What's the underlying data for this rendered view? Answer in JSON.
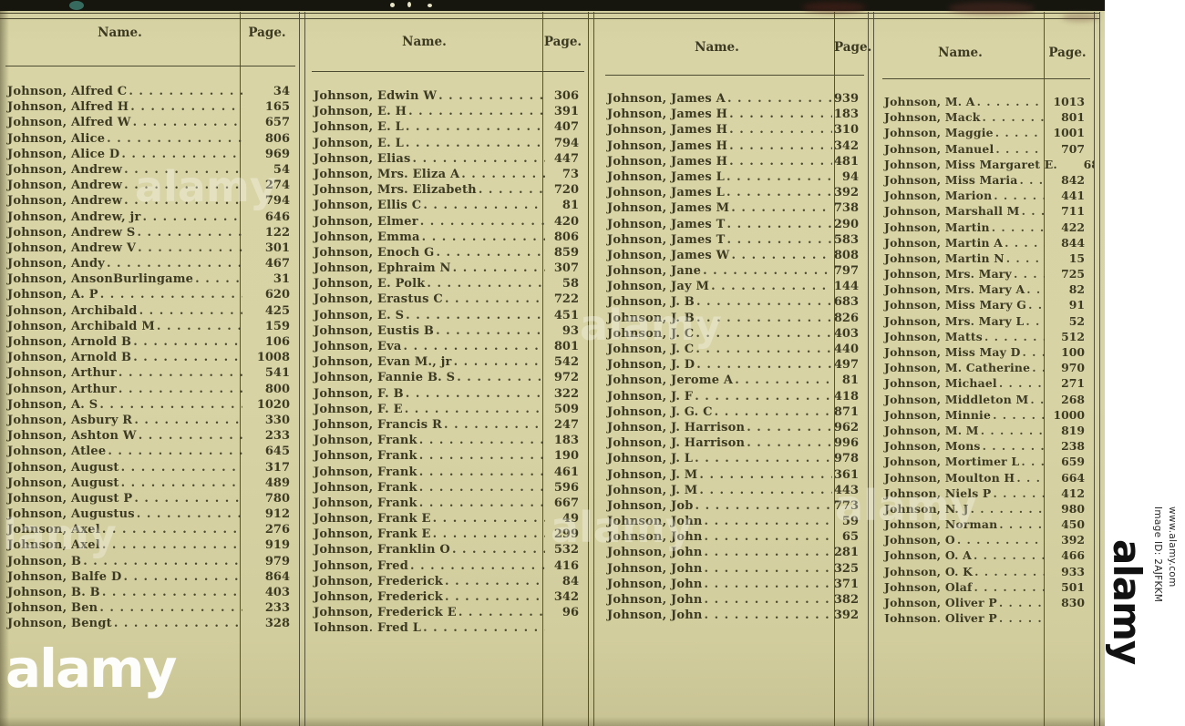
{
  "header": {
    "name_label": "Name.",
    "page_label": "Page."
  },
  "columns": [
    {
      "entries": [
        {
          "name": "Johnson, Alfred C",
          "page": "34"
        },
        {
          "name": "Johnson, Alfred H",
          "page": "165"
        },
        {
          "name": "Johnson, Alfred W",
          "page": "657"
        },
        {
          "name": "Johnson, Alice",
          "page": "806"
        },
        {
          "name": "Johnson, Alice D",
          "page": "969"
        },
        {
          "name": "Johnson, Andrew",
          "page": "54"
        },
        {
          "name": "Johnson, Andrew",
          "page": "274"
        },
        {
          "name": "Johnson, Andrew",
          "page": "794"
        },
        {
          "name": "Johnson, Andrew, jr",
          "page": "646"
        },
        {
          "name": "Johnson, Andrew S",
          "page": "122"
        },
        {
          "name": "Johnson, Andrew V",
          "page": "301"
        },
        {
          "name": "Johnson, Andy",
          "page": "467"
        },
        {
          "name": "Johnson, AnsonBurlingame",
          "page": "31"
        },
        {
          "name": "Johnson, A. P",
          "page": "620"
        },
        {
          "name": "Johnson, Archibald",
          "page": "425"
        },
        {
          "name": "Johnson, Archibald M",
          "page": "159"
        },
        {
          "name": "Johnson, Arnold B",
          "page": "106"
        },
        {
          "name": "Johnson, Arnold B",
          "page": "1008"
        },
        {
          "name": "Johnson, Arthur",
          "page": "541"
        },
        {
          "name": "Johnson, Arthur",
          "page": "800"
        },
        {
          "name": "Johnson, A. S",
          "page": "1020"
        },
        {
          "name": "Johnson, Asbury R",
          "page": "330"
        },
        {
          "name": "Johnson, Ashton W",
          "page": "233"
        },
        {
          "name": "Johnson, Atlee",
          "page": "645"
        },
        {
          "name": "Johnson, August",
          "page": "317"
        },
        {
          "name": "Johnson, August",
          "page": "489"
        },
        {
          "name": "Johnson, August P",
          "page": "780"
        },
        {
          "name": "Johnson, Augustus",
          "page": "912"
        },
        {
          "name": "Johnson, Axel",
          "page": "276"
        },
        {
          "name": "Johnson, Axel",
          "page": "919"
        },
        {
          "name": "Johnson, B",
          "page": "979"
        },
        {
          "name": "Johnson, Balfe D",
          "page": "864"
        },
        {
          "name": "Johnson, B. B",
          "page": "403"
        },
        {
          "name": "Johnson, Ben",
          "page": "233"
        },
        {
          "name": "Johnson, Bengt",
          "page": "328"
        }
      ]
    },
    {
      "entries": [
        {
          "name": "Johnson, Edwin W",
          "page": "306"
        },
        {
          "name": "Johnson, E. H",
          "page": "391"
        },
        {
          "name": "Johnson, E. L",
          "page": "407"
        },
        {
          "name": "Johnson, E. L",
          "page": "794"
        },
        {
          "name": "Johnson, Elias",
          "page": "447"
        },
        {
          "name": "Johnson, Mrs. Eliza A",
          "page": "73"
        },
        {
          "name": "Johnson, Mrs. Elizabeth",
          "page": "720"
        },
        {
          "name": "Johnson, Ellis C",
          "page": "81"
        },
        {
          "name": "Johnson, Elmer",
          "page": "420"
        },
        {
          "name": "Johnson, Emma",
          "page": "806"
        },
        {
          "name": "Johnson, Enoch G",
          "page": "859"
        },
        {
          "name": "Johnson, Ephraim N",
          "page": "307"
        },
        {
          "name": "Johnson, E. Polk",
          "page": "58"
        },
        {
          "name": "Johnson, Erastus C",
          "page": "722"
        },
        {
          "name": "Johnson, E. S",
          "page": "451"
        },
        {
          "name": "Johnson, Eustis B",
          "page": "93"
        },
        {
          "name": "Johnson, Eva",
          "page": "801"
        },
        {
          "name": "Johnson, Evan M., jr",
          "page": "542"
        },
        {
          "name": "Johnson, Fannie B. S",
          "page": "972"
        },
        {
          "name": "Johnson, F. B",
          "page": "322"
        },
        {
          "name": "Johnson, F. E",
          "page": "509"
        },
        {
          "name": "Johnson, Francis R",
          "page": "247"
        },
        {
          "name": "Johnson, Frank",
          "page": "183"
        },
        {
          "name": "Johnson, Frank",
          "page": "190"
        },
        {
          "name": "Johnson, Frank",
          "page": "461"
        },
        {
          "name": "Johnson, Frank",
          "page": "596"
        },
        {
          "name": "Johnson, Frank",
          "page": "667"
        },
        {
          "name": "Johnson, Frank E",
          "page": "49"
        },
        {
          "name": "Johnson, Frank E",
          "page": "299"
        },
        {
          "name": "Johnson, Franklin O",
          "page": "532"
        },
        {
          "name": "Johnson, Fred",
          "page": "416"
        },
        {
          "name": "Johnson, Frederick",
          "page": "84"
        },
        {
          "name": "Johnson, Frederick",
          "page": "342"
        },
        {
          "name": "Johnson, Frederick E",
          "page": "96"
        },
        {
          "name": "Johnson, Fred L",
          "page": ""
        }
      ]
    },
    {
      "entries": [
        {
          "name": "Johnson, James A",
          "page": "939"
        },
        {
          "name": "Johnson, James H",
          "page": "183"
        },
        {
          "name": "Johnson, James H",
          "page": "310"
        },
        {
          "name": "Johnson, James H",
          "page": "342"
        },
        {
          "name": "Johnson, James H",
          "page": "481"
        },
        {
          "name": "Johnson, James L",
          "page": "94"
        },
        {
          "name": "Johnson, James L",
          "page": "392"
        },
        {
          "name": "Johnson, James M",
          "page": "738"
        },
        {
          "name": "Johnson, James T",
          "page": "290"
        },
        {
          "name": "Johnson, James T",
          "page": "583"
        },
        {
          "name": "Johnson, James W",
          "page": "808"
        },
        {
          "name": "Johnson, Jane",
          "page": "797"
        },
        {
          "name": "Johnson, Jay M",
          "page": "144"
        },
        {
          "name": "Johnson, J. B",
          "page": "683"
        },
        {
          "name": "Johnson, J. B",
          "page": "826"
        },
        {
          "name": "Johnson, J. C",
          "page": "403"
        },
        {
          "name": "Johnson, J. C",
          "page": "440"
        },
        {
          "name": "Johnson, J. D",
          "page": "497"
        },
        {
          "name": "Johnson, Jerome A",
          "page": "81"
        },
        {
          "name": "Johnson, J. F",
          "page": "418"
        },
        {
          "name": "Johnson, J. G. C",
          "page": "871"
        },
        {
          "name": "Johnson, J. Harrison",
          "page": "962"
        },
        {
          "name": "Johnson, J. Harrison",
          "page": "996"
        },
        {
          "name": "Johnson, J. L",
          "page": "978"
        },
        {
          "name": "Johnson, J. M",
          "page": "361"
        },
        {
          "name": "Johnson, J. M",
          "page": "443"
        },
        {
          "name": "Johnson, Job",
          "page": "773"
        },
        {
          "name": "Johnson, John",
          "page": "59"
        },
        {
          "name": "Johnson, John",
          "page": "65"
        },
        {
          "name": "Johnson, John",
          "page": "281"
        },
        {
          "name": "Johnson, John",
          "page": "325"
        },
        {
          "name": "Johnson, John",
          "page": "371"
        },
        {
          "name": "Johnson, John",
          "page": "382"
        },
        {
          "name": "Johnson, John",
          "page": "392"
        }
      ]
    },
    {
      "entries": [
        {
          "name": "Johnson, M. A",
          "page": "1013"
        },
        {
          "name": "Johnson, Mack",
          "page": "801"
        },
        {
          "name": "Johnson, Maggie",
          "page": "1001"
        },
        {
          "name": "Johnson, Manuel",
          "page": "707"
        },
        {
          "name": "Johnson, Miss Margaret E.",
          "page": "68"
        },
        {
          "name": "Johnson, Miss Maria",
          "page": "842"
        },
        {
          "name": "Johnson, Marion",
          "page": "441"
        },
        {
          "name": "Johnson, Marshall M",
          "page": "711"
        },
        {
          "name": "Johnson, Martin",
          "page": "422"
        },
        {
          "name": "Johnson, Martin A",
          "page": "844"
        },
        {
          "name": "Johnson, Martin N",
          "page": "15"
        },
        {
          "name": "Johnson, Mrs. Mary",
          "page": "725"
        },
        {
          "name": "Johnson, Mrs. Mary A",
          "page": "82"
        },
        {
          "name": "Johnson, Miss Mary G",
          "page": "91"
        },
        {
          "name": "Johnson, Mrs. Mary L",
          "page": "52"
        },
        {
          "name": "Johnson, Matts",
          "page": "512"
        },
        {
          "name": "Johnson, Miss May D",
          "page": "100"
        },
        {
          "name": "Johnson, M. Catherine",
          "page": "970"
        },
        {
          "name": "Johnson, Michael",
          "page": "271"
        },
        {
          "name": "Johnson, Middleton M",
          "page": "268"
        },
        {
          "name": "Johnson, Minnie",
          "page": "1000"
        },
        {
          "name": "Johnson, M. M",
          "page": "819"
        },
        {
          "name": "Johnson, Mons",
          "page": "238"
        },
        {
          "name": "Johnson, Mortimer L",
          "page": "659"
        },
        {
          "name": "Johnson, Moulton H",
          "page": "664"
        },
        {
          "name": "Johnson, Niels P",
          "page": "412"
        },
        {
          "name": "Johnson, N. J",
          "page": "980"
        },
        {
          "name": "Johnson, Norman",
          "page": "450"
        },
        {
          "name": "Johnson, O",
          "page": "392"
        },
        {
          "name": "Johnson, O. A",
          "page": "466"
        },
        {
          "name": "Johnson, O. K",
          "page": "933"
        },
        {
          "name": "Johnson, Olaf",
          "page": "501"
        },
        {
          "name": "Johnson, Oliver P",
          "page": "830"
        },
        {
          "name": "Johnson, Oliver P",
          "page": ""
        }
      ]
    }
  ],
  "watermark": {
    "brand": "alamy",
    "image_id_label": "Image ID: 2AJFKKM",
    "url": "www.alamy.com"
  }
}
